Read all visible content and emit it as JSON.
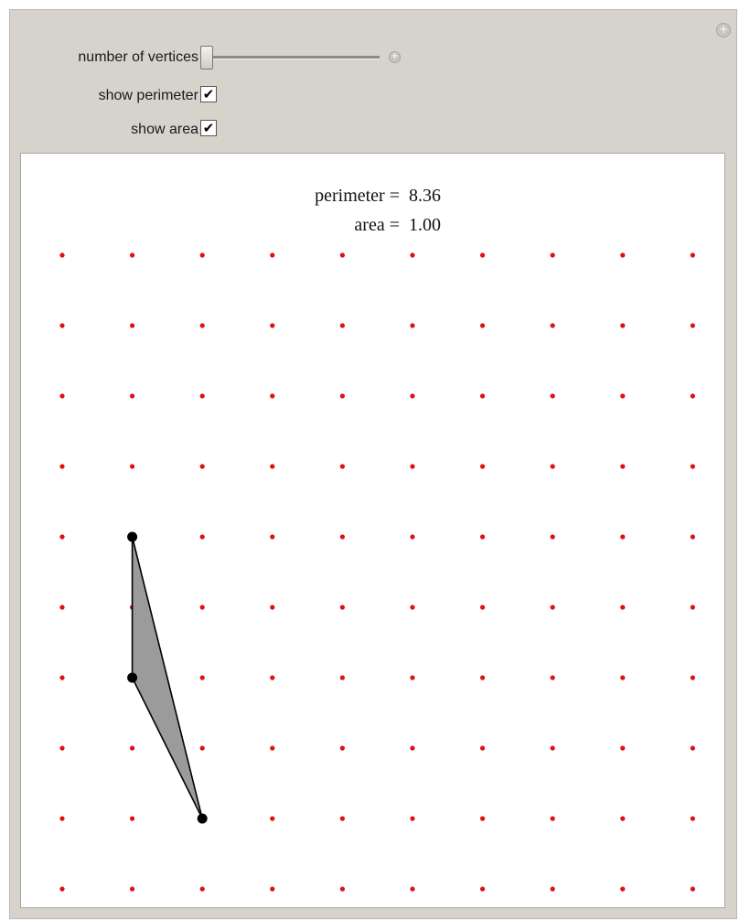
{
  "controls": {
    "vertices_label": "number of vertices",
    "vertices_value": 3,
    "show_perimeter_label": "show perimeter",
    "show_perimeter_checked": true,
    "show_area_label": "show area",
    "show_area_checked": true,
    "panel_plus": "+",
    "slider_plus": "+"
  },
  "readout": {
    "perimeter_label": "perimeter =",
    "perimeter_value": "8.36",
    "area_label": "area =",
    "area_value": "1.00"
  },
  "grid": {
    "columns": 10,
    "rows": 10,
    "dot_color": "#e01010"
  },
  "polygon": {
    "vertices": [
      [
        2,
        6
      ],
      [
        2,
        4
      ],
      [
        3,
        2
      ]
    ],
    "fill_color": "#9b9b9b",
    "stroke_color": "#000000",
    "vertex_color": "#000000"
  }
}
